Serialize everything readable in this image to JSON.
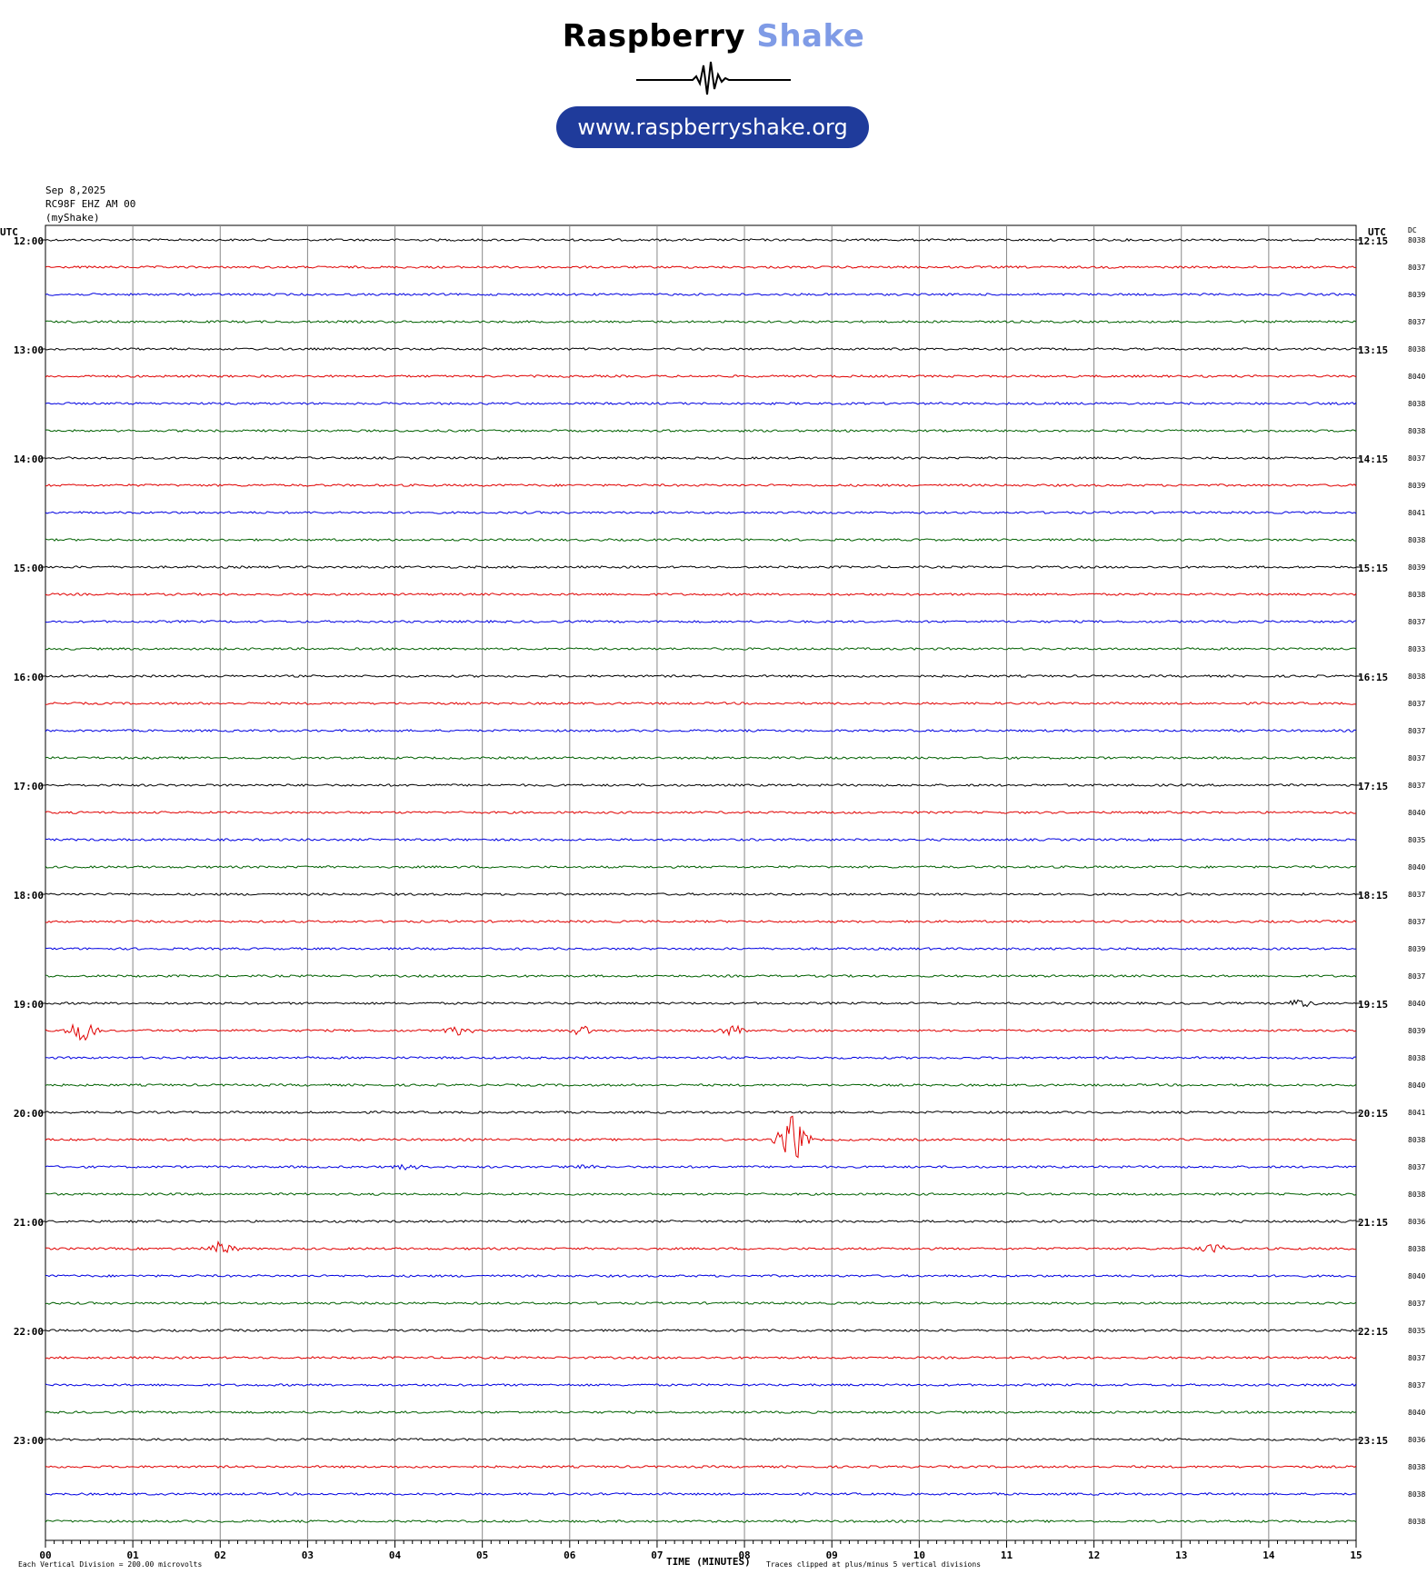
{
  "logo": {
    "title_part1": "Raspberry",
    "title_part2": "Shake",
    "url": "www.raspberryshake.org",
    "wave_icon": "seismic-wave-icon"
  },
  "header": {
    "date": "Sep 8,2025",
    "station": "RC98F EHZ AM 00",
    "network": "(myShake)"
  },
  "chart_data": {
    "type": "line",
    "title": "",
    "xlabel": "TIME (MINUTES)",
    "ylabel": "",
    "left_axis_label": "UTC",
    "right_axis_label": "UTC",
    "dc_label": "DC",
    "xlim": [
      0,
      15
    ],
    "x_ticks": [
      "00",
      "01",
      "02",
      "03",
      "04",
      "05",
      "06",
      "07",
      "08",
      "09",
      "10",
      "11",
      "12",
      "13",
      "14",
      "15"
    ],
    "left_hour_labels": [
      "12:00",
      "13:00",
      "14:00",
      "15:00",
      "16:00",
      "17:00",
      "18:00",
      "19:00",
      "20:00",
      "21:00",
      "22:00",
      "23:00"
    ],
    "right_hour_labels": [
      "12:15",
      "13:15",
      "14:15",
      "15:15",
      "16:15",
      "17:15",
      "18:15",
      "19:15",
      "20:15",
      "21:15",
      "22:15",
      "23:15"
    ],
    "trace_colors": [
      "#000000",
      "#e00000",
      "#0000e0",
      "#006000"
    ],
    "dc_values": [
      "8038",
      "8037",
      "8039",
      "8037",
      "8038",
      "8040",
      "8038",
      "8038",
      "8037",
      "8039",
      "8041",
      "8038",
      "8039",
      "8038",
      "8037",
      "8033",
      "8038",
      "8037",
      "8037",
      "8037",
      "8037",
      "8040",
      "8035",
      "8040",
      "8037",
      "8037",
      "8039",
      "8037",
      "8040",
      "8039",
      "8038",
      "8040",
      "8041",
      "8038",
      "8037",
      "8038",
      "8036",
      "8038",
      "8040",
      "8037",
      "8035",
      "8037",
      "8037",
      "8040",
      "8036",
      "8038",
      "8038",
      "8038"
    ],
    "footer_left": "Each Vertical Division =  200.00 microvolts",
    "footer_right": "Traces clipped at plus/minus 5 vertical divisions",
    "events": [
      {
        "trace": 29,
        "minute": 0.42,
        "amp": 14
      },
      {
        "trace": 29,
        "minute": 4.7,
        "amp": 5
      },
      {
        "trace": 29,
        "minute": 6.15,
        "amp": 5
      },
      {
        "trace": 29,
        "minute": 7.85,
        "amp": 6
      },
      {
        "trace": 28,
        "minute": 14.35,
        "amp": 6
      },
      {
        "trace": 33,
        "minute": 8.55,
        "amp": 30
      },
      {
        "trace": 34,
        "minute": 4.15,
        "amp": 4
      },
      {
        "trace": 34,
        "minute": 6.15,
        "amp": 4
      },
      {
        "trace": 37,
        "minute": 2.0,
        "amp": 8
      },
      {
        "trace": 37,
        "minute": 13.35,
        "amp": 6
      }
    ]
  }
}
